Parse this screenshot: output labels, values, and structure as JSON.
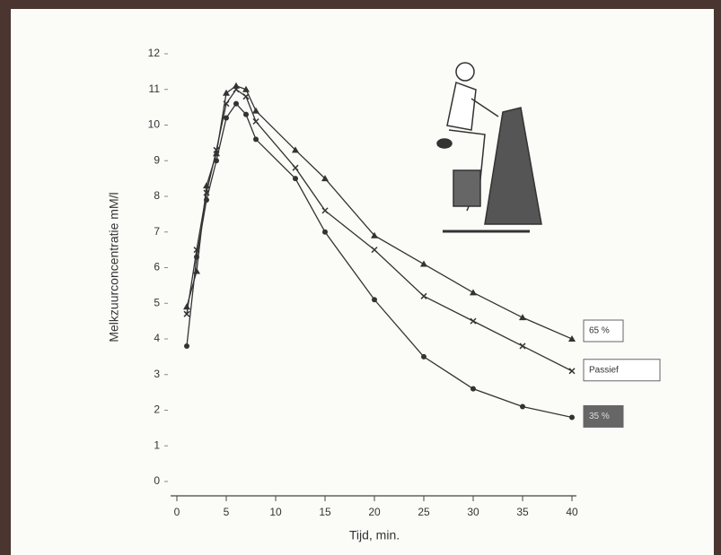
{
  "chart_data": {
    "type": "line",
    "x_label": "Tijd, min.",
    "y_label": "Melkzuurconcentratie mM/l",
    "x": [
      1,
      2,
      3,
      4,
      5,
      6,
      7,
      8,
      12,
      15,
      20,
      25,
      30,
      35,
      40
    ],
    "series": [
      {
        "name": "65 %",
        "color": "#333333",
        "marker": "triangle",
        "values": [
          4.9,
          5.9,
          8.3,
          9.2,
          10.9,
          11.1,
          11.0,
          10.4,
          9.3,
          8.5,
          6.9,
          6.1,
          5.3,
          4.6,
          4.0
        ]
      },
      {
        "name": "Passief",
        "color": "#333333",
        "marker": "cross",
        "values": [
          4.7,
          6.5,
          8.1,
          9.3,
          10.6,
          11.0,
          10.8,
          10.1,
          8.8,
          7.6,
          6.5,
          5.2,
          4.5,
          3.8,
          3.1
        ]
      },
      {
        "name": "35 %",
        "color": "#333333",
        "marker": "circle",
        "values": [
          3.8,
          6.3,
          7.9,
          9.0,
          10.2,
          10.6,
          10.3,
          9.6,
          8.5,
          7.0,
          5.1,
          3.5,
          2.6,
          2.1,
          1.8
        ]
      }
    ],
    "xlim": [
      0,
      40
    ],
    "xticks": [
      0,
      5,
      10,
      15,
      20,
      25,
      30,
      35,
      40
    ],
    "ylim": [
      0,
      12
    ],
    "yticks": [
      0,
      1,
      2,
      3,
      4,
      5,
      6,
      7,
      8,
      9,
      10,
      11,
      12
    ]
  }
}
